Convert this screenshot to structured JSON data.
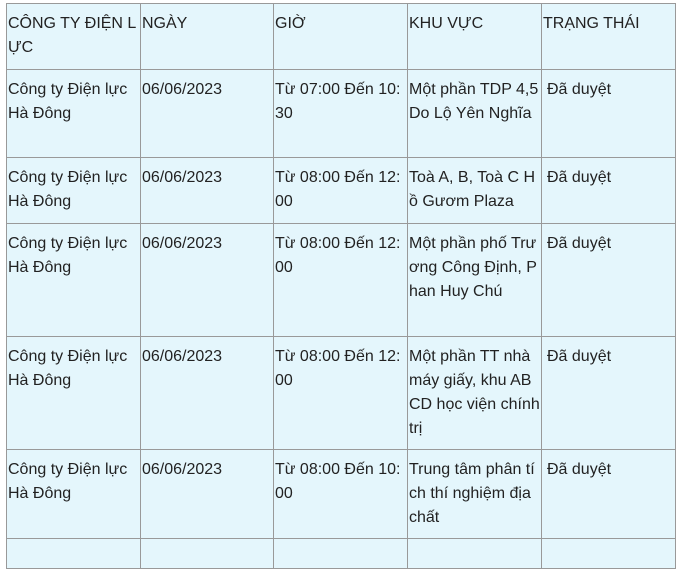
{
  "table": {
    "headers": [
      "CÔNG TY ĐIỆN LỰC",
      "NGÀY",
      "GIỜ",
      "KHU VỰC",
      "TRẠNG THÁI"
    ],
    "rows": [
      [
        "Công ty Điện lực Hà Đông",
        "06/06/2023",
        "Từ 07:00 Đến 10:30",
        "Một phần TDP 4,5 Do Lộ Yên Nghĩa",
        "Đã duyệt"
      ],
      [
        "Công ty Điện lực Hà Đông",
        "06/06/2023",
        "Từ 08:00 Đến 12:00",
        "Toà A, B, Toà C Hồ Gươm Plaza",
        "Đã duyệt"
      ],
      [
        "Công ty Điện lực Hà Đông",
        "06/06/2023",
        "Từ 08:00 Đến 12:00",
        "Một phần phố Trương Công Định, Phan Huy Chú",
        "Đã duyệt"
      ],
      [
        "Công ty Điện lực Hà Đông",
        "06/06/2023",
        "Từ 08:00 Đến 12:00",
        "Một phần TT nhà máy giấy, khu ABCD học viện chính trị",
        "Đã duyệt"
      ],
      [
        "Công ty Điện lực Hà Đông",
        "06/06/2023",
        "Từ 08:00 Đến 10:00",
        "Trung tâm phân tích thí nghiệm địa chất",
        "Đã duyệt"
      ]
    ]
  },
  "colors": {
    "cell_background": "#e4f6fc",
    "border": "#999999"
  }
}
